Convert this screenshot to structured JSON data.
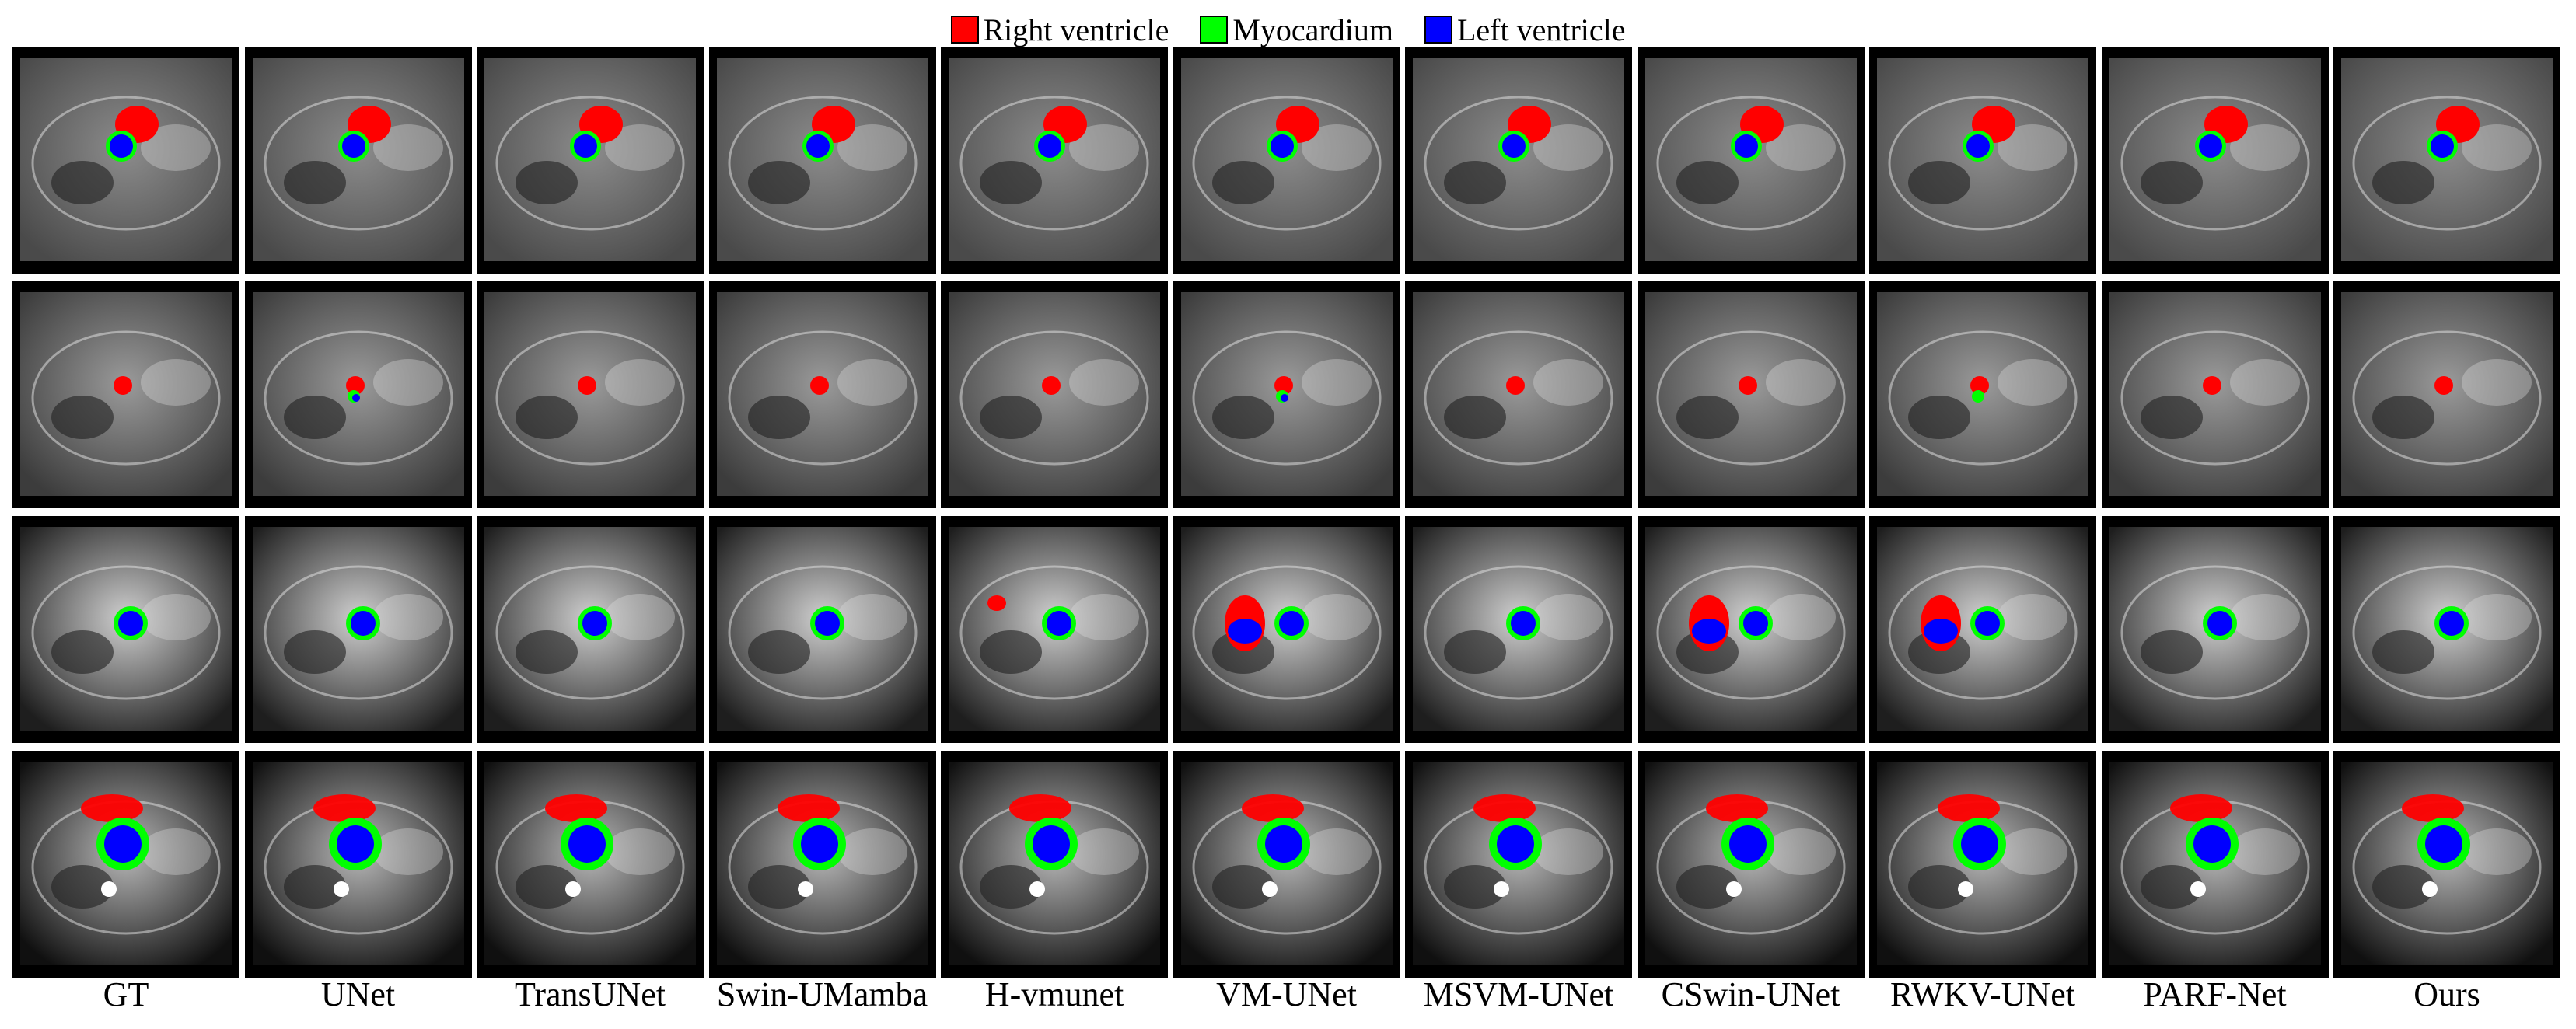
{
  "legend": [
    {
      "label": "Right ventricle",
      "color": "#ff0000"
    },
    {
      "label": "Myocardium",
      "color": "#00ff00"
    },
    {
      "label": "Left ventricle",
      "color": "#0000ff"
    }
  ],
  "methods": [
    "GT",
    "UNet",
    "TransUNet",
    "Swin-UMamba",
    "H-vmunet",
    "VM-UNet",
    "MSVM-UNet",
    "CSwin-UNet",
    "RWKV-UNet",
    "PARF-Net",
    "Ours"
  ],
  "rows": 4
}
